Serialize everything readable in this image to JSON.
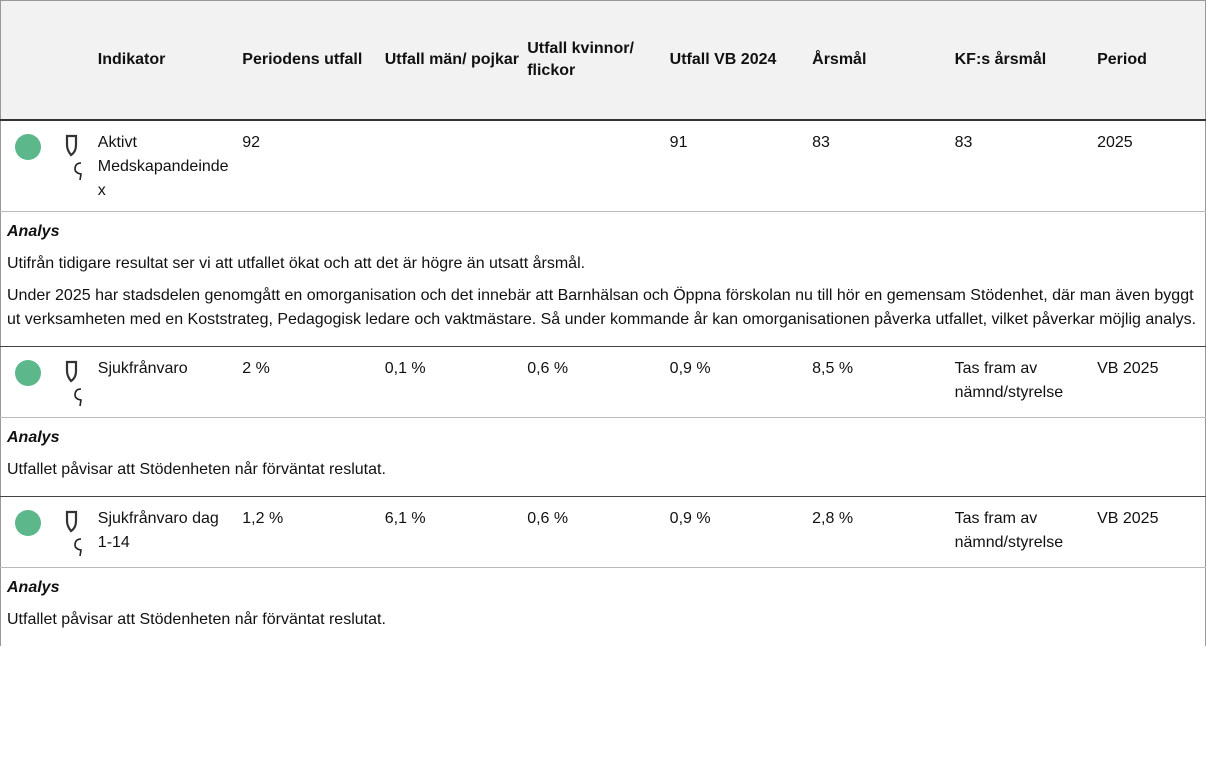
{
  "table": {
    "columns": [
      "Indikator",
      "Periodens utfall",
      "Utfall män/ pojkar",
      "Utfall kvinnor/ flickor",
      "Utfall VB 2024",
      "Årsmål",
      "KF:s årsmål",
      "Period"
    ],
    "rows": [
      {
        "cells": [
          "Aktivt Medskapandeindex",
          "92",
          "",
          "",
          "91",
          "83",
          "83",
          "2025"
        ],
        "analysis_title": "Analys",
        "analysis": [
          "Utifrån tidigare resultat ser vi att utfallet ökat och att det är högre än utsatt årsmål.",
          "Under 2025 har stadsdelen genomgått en omorganisation och det innebär att Barnhälsan och Öppna förskolan nu till hör en gemensam Stödenhet, där man även byggt ut verksamheten med en Koststrateg, Pedagogisk ledare och vaktmästare. Så under kommande år kan omorganisationen påverka utfallet, vilket påverkar möjlig analys."
        ]
      },
      {
        "cells": [
          "Sjukfrånvaro",
          "2 %",
          "0,1 %",
          "0,6 %",
          "0,9 %",
          "8,5 %",
          "Tas fram av nämnd/styrelse",
          "VB 2025"
        ],
        "analysis_title": "Analys",
        "analysis": [
          "Utfallet påvisar att Stödenheten når förväntat reslutat."
        ]
      },
      {
        "cells": [
          "Sjukfrånvaro dag 1-14",
          "1,2 %",
          "6,1 %",
          "0,6 %",
          "0,9 %",
          "2,8 %",
          "Tas fram av nämnd/styrelse",
          "VB 2025"
        ],
        "analysis_title": "Analys",
        "analysis": [
          "Utfallet påvisar att Stödenheten når förväntat reslutat."
        ]
      }
    ]
  }
}
